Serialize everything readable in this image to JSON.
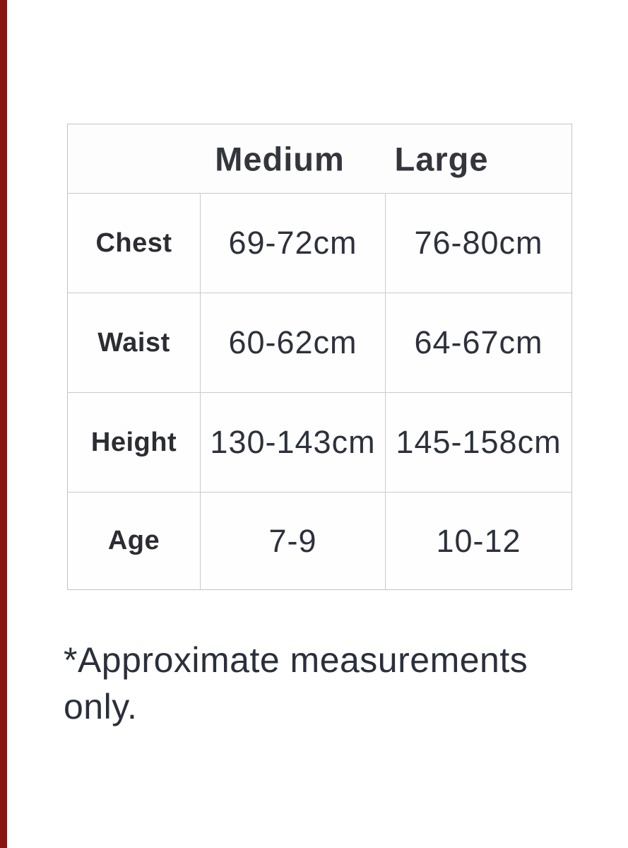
{
  "colors": {
    "left_bar": "#8a1414",
    "grid_line": "#c9cbcc",
    "header_text": "#34363e",
    "body_text": "#2c313c",
    "background": "#ffffff"
  },
  "table": {
    "columns": [
      "Medium",
      "Large"
    ],
    "rows": [
      {
        "label": "Chest",
        "medium": "69-72cm",
        "large": "76-80cm"
      },
      {
        "label": "Waist",
        "medium": "60-62cm",
        "large": "64-67cm"
      },
      {
        "label": "Height",
        "medium": "130-143cm",
        "large": "145-158cm"
      },
      {
        "label": "Age",
        "medium": "7-9",
        "large": "10-12"
      }
    ]
  },
  "note": "*Approximate measurements only.",
  "chart_data": {
    "type": "table",
    "title": "",
    "column_headers": [
      "",
      "Medium",
      "Large"
    ],
    "row_headers": [
      "Chest",
      "Waist",
      "Height",
      "Age"
    ],
    "cells": [
      [
        "Chest",
        "69-72cm",
        "76-80cm"
      ],
      [
        "Waist",
        "60-62cm",
        "64-67cm"
      ],
      [
        "Height",
        "130-143cm",
        "145-158cm"
      ],
      [
        "Age",
        "7-9",
        "10-12"
      ]
    ],
    "footnote": "*Approximate measurements only."
  }
}
